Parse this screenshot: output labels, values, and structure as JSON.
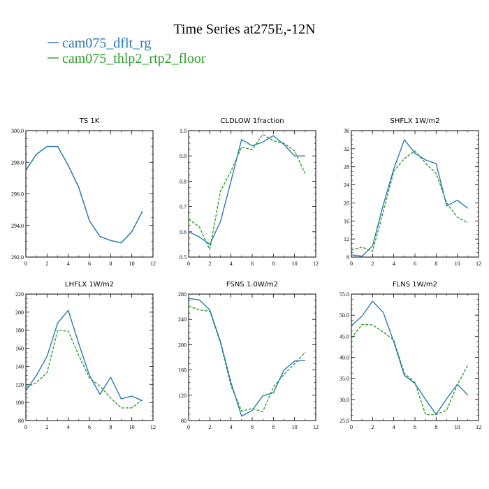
{
  "figure": {
    "title": "Time Series at275E,-12N",
    "legend": [
      {
        "name": "cam075_dflt_rg",
        "color": "#2878b5",
        "dash": "solid"
      },
      {
        "name": "cam075_thlp2_rtp2_floor",
        "color": "#2ca02c",
        "dash": "dashed"
      }
    ]
  },
  "chart_data": [
    {
      "type": "line",
      "title": "TS   1K",
      "xlim": [
        0,
        12
      ],
      "xticks": [
        0,
        2,
        4,
        6,
        8,
        10,
        12
      ],
      "ylim": [
        292,
        300
      ],
      "yticks": [
        "292.0",
        "294.0",
        "296.0",
        "298.0",
        "300.0"
      ],
      "x": [
        0,
        1,
        2,
        3,
        4,
        5,
        6,
        7,
        8,
        9,
        10,
        11
      ],
      "series": [
        {
          "name": "cam075_dflt_rg",
          "values": [
            297.5,
            298.5,
            299.0,
            299.0,
            297.8,
            296.4,
            294.3,
            293.3,
            293.05,
            292.9,
            293.6,
            294.9
          ]
        },
        {
          "name": "cam075_thlp2_rtp2_floor",
          "values": [
            297.5,
            298.5,
            299.0,
            299.0,
            297.8,
            296.4,
            294.3,
            293.3,
            293.05,
            292.9,
            293.6,
            294.9
          ]
        }
      ]
    },
    {
      "type": "line",
      "title": "CLDLOW   1fraction",
      "xlim": [
        0,
        12
      ],
      "xticks": [
        0,
        2,
        4,
        6,
        8,
        10,
        12
      ],
      "ylim": [
        0.5,
        1.0
      ],
      "yticks": [
        "0.5",
        "0.6",
        "0.7",
        "0.8",
        "0.9",
        "1.0"
      ],
      "x": [
        0,
        1,
        2,
        3,
        4,
        5,
        6,
        7,
        8,
        9,
        10,
        11
      ],
      "series": [
        {
          "name": "cam075_dflt_rg",
          "values": [
            0.6,
            0.58,
            0.55,
            0.64,
            0.8,
            0.965,
            0.94,
            0.955,
            0.98,
            0.945,
            0.9,
            0.9
          ]
        },
        {
          "name": "cam075_thlp2_rtp2_floor",
          "values": [
            0.65,
            0.62,
            0.53,
            0.76,
            0.84,
            0.935,
            0.925,
            0.985,
            0.96,
            0.95,
            0.92,
            0.83
          ]
        }
      ]
    },
    {
      "type": "line",
      "title": "SHFLX   1W/m2",
      "xlim": [
        0,
        12
      ],
      "xticks": [
        0,
        2,
        4,
        6,
        8,
        10,
        12
      ],
      "ylim": [
        8,
        36
      ],
      "yticks": [
        "8",
        "12",
        "16",
        "20",
        "24",
        "28",
        "32",
        "36"
      ],
      "x": [
        0,
        1,
        2,
        3,
        4,
        5,
        6,
        7,
        8,
        9,
        10,
        11
      ],
      "series": [
        {
          "name": "cam075_dflt_rg",
          "values": [
            8.5,
            8.2,
            10.5,
            19.5,
            27.5,
            34.0,
            31.0,
            29.5,
            28.7,
            19.3,
            20.6,
            18.8
          ]
        },
        {
          "name": "cam075_thlp2_rtp2_floor",
          "values": [
            9.5,
            10.2,
            9.3,
            18.0,
            27.0,
            29.8,
            31.5,
            28.8,
            26.5,
            20.0,
            16.8,
            15.6
          ]
        }
      ]
    },
    {
      "type": "line",
      "title": "LHFLX   1W/m2",
      "xlim": [
        0,
        12
      ],
      "xticks": [
        0,
        2,
        4,
        6,
        8,
        10,
        12
      ],
      "ylim": [
        80,
        220
      ],
      "yticks": [
        "80",
        "100",
        "120",
        "140",
        "160",
        "180",
        "200",
        "220"
      ],
      "x": [
        0,
        1,
        2,
        3,
        4,
        5,
        6,
        7,
        8,
        9,
        10,
        11
      ],
      "series": [
        {
          "name": "cam075_dflt_rg",
          "values": [
            113,
            130,
            151,
            188,
            202,
            165,
            130,
            109,
            128,
            104,
            107,
            102
          ]
        },
        {
          "name": "cam075_thlp2_rtp2_floor",
          "values": [
            117,
            122,
            133,
            180,
            179,
            152,
            127,
            118,
            105,
            94,
            94,
            103
          ]
        }
      ]
    },
    {
      "type": "line",
      "title": "FSNS   1.0W/m2",
      "xlim": [
        0,
        12
      ],
      "xticks": [
        0,
        2,
        4,
        6,
        8,
        10,
        12
      ],
      "ylim": [
        80,
        280
      ],
      "yticks": [
        "80",
        "120",
        "160",
        "200",
        "240",
        "280"
      ],
      "x": [
        0,
        1,
        2,
        3,
        4,
        5,
        6,
        7,
        8,
        9,
        10,
        11
      ],
      "series": [
        {
          "name": "cam075_dflt_rg",
          "values": [
            273,
            271,
            255,
            205,
            140,
            87,
            96,
            119,
            124,
            160,
            174,
            175
          ]
        },
        {
          "name": "cam075_thlp2_rtp2_floor",
          "values": [
            261,
            255,
            253,
            203,
            135,
            95,
            99,
            94,
            133,
            153,
            170,
            188
          ]
        }
      ]
    },
    {
      "type": "line",
      "title": "FLNS   1W/m2",
      "xlim": [
        0,
        12
      ],
      "xticks": [
        0,
        2,
        4,
        6,
        8,
        10,
        12
      ],
      "ylim": [
        25,
        55
      ],
      "yticks": [
        "25.0",
        "30.0",
        "35.0",
        "40.0",
        "45.0",
        "50.0",
        "55.0"
      ],
      "x": [
        0,
        1,
        2,
        3,
        4,
        5,
        6,
        7,
        8,
        9,
        10,
        11
      ],
      "series": [
        {
          "name": "cam075_dflt_rg",
          "values": [
            47.5,
            49.8,
            53.3,
            50.7,
            43.7,
            35.7,
            33.8,
            30.0,
            26.5,
            30.2,
            33.6,
            31.0
          ]
        },
        {
          "name": "cam075_thlp2_rtp2_floor",
          "values": [
            44.5,
            47.8,
            47.7,
            46.0,
            44.1,
            36.2,
            34.0,
            26.4,
            26.4,
            27.5,
            33.5,
            38.2
          ]
        }
      ]
    }
  ]
}
